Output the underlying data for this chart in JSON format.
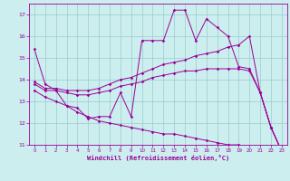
{
  "xlabel": "Windchill (Refroidissement éolien,°C)",
  "bg_color": "#cceeee",
  "grid_color": "#99cccc",
  "line_color": "#990099",
  "xlim": [
    -0.5,
    23.5
  ],
  "ylim": [
    11,
    17.5
  ],
  "yticks": [
    11,
    12,
    13,
    14,
    15,
    16,
    17
  ],
  "xticks": [
    0,
    1,
    2,
    3,
    4,
    5,
    6,
    7,
    8,
    9,
    10,
    11,
    12,
    13,
    14,
    15,
    16,
    17,
    18,
    19,
    20,
    21,
    22,
    23
  ],
  "series": [
    {
      "x": [
        0,
        1,
        2,
        3,
        4,
        5,
        6,
        7,
        8,
        9,
        10,
        11,
        12,
        13,
        14,
        15,
        16,
        17,
        18,
        19,
        20,
        21,
        22,
        23
      ],
      "y": [
        15.4,
        13.8,
        13.5,
        12.8,
        12.7,
        12.2,
        12.3,
        12.3,
        13.4,
        12.3,
        15.8,
        15.8,
        15.8,
        17.2,
        17.2,
        15.8,
        16.8,
        16.4,
        16.0,
        14.6,
        14.5,
        13.4,
        11.8,
        10.7
      ]
    },
    {
      "x": [
        0,
        1,
        2,
        3,
        4,
        5,
        6,
        7,
        8,
        9,
        10,
        11,
        12,
        13,
        14,
        15,
        16,
        17,
        18,
        19,
        20,
        21,
        22,
        23
      ],
      "y": [
        13.9,
        13.6,
        13.6,
        13.5,
        13.5,
        13.5,
        13.6,
        13.8,
        14.0,
        14.1,
        14.3,
        14.5,
        14.7,
        14.8,
        14.9,
        15.1,
        15.2,
        15.3,
        15.5,
        15.6,
        16.0,
        13.4,
        11.8,
        10.7
      ]
    },
    {
      "x": [
        0,
        1,
        2,
        3,
        4,
        5,
        6,
        7,
        8,
        9,
        10,
        11,
        12,
        13,
        14,
        15,
        16,
        17,
        18,
        19,
        20,
        21,
        22,
        23
      ],
      "y": [
        13.8,
        13.5,
        13.5,
        13.4,
        13.3,
        13.3,
        13.4,
        13.5,
        13.7,
        13.8,
        13.9,
        14.1,
        14.2,
        14.3,
        14.4,
        14.4,
        14.5,
        14.5,
        14.5,
        14.5,
        14.4,
        13.4,
        11.8,
        10.7
      ]
    },
    {
      "x": [
        0,
        1,
        2,
        3,
        4,
        5,
        6,
        7,
        8,
        9,
        10,
        11,
        12,
        13,
        14,
        15,
        16,
        17,
        18,
        19,
        20,
        21,
        22,
        23
      ],
      "y": [
        13.5,
        13.2,
        13.0,
        12.8,
        12.5,
        12.3,
        12.1,
        12.0,
        11.9,
        11.8,
        11.7,
        11.6,
        11.5,
        11.5,
        11.4,
        11.3,
        11.2,
        11.1,
        11.0,
        11.0,
        10.9,
        10.8,
        10.75,
        10.7
      ]
    }
  ]
}
